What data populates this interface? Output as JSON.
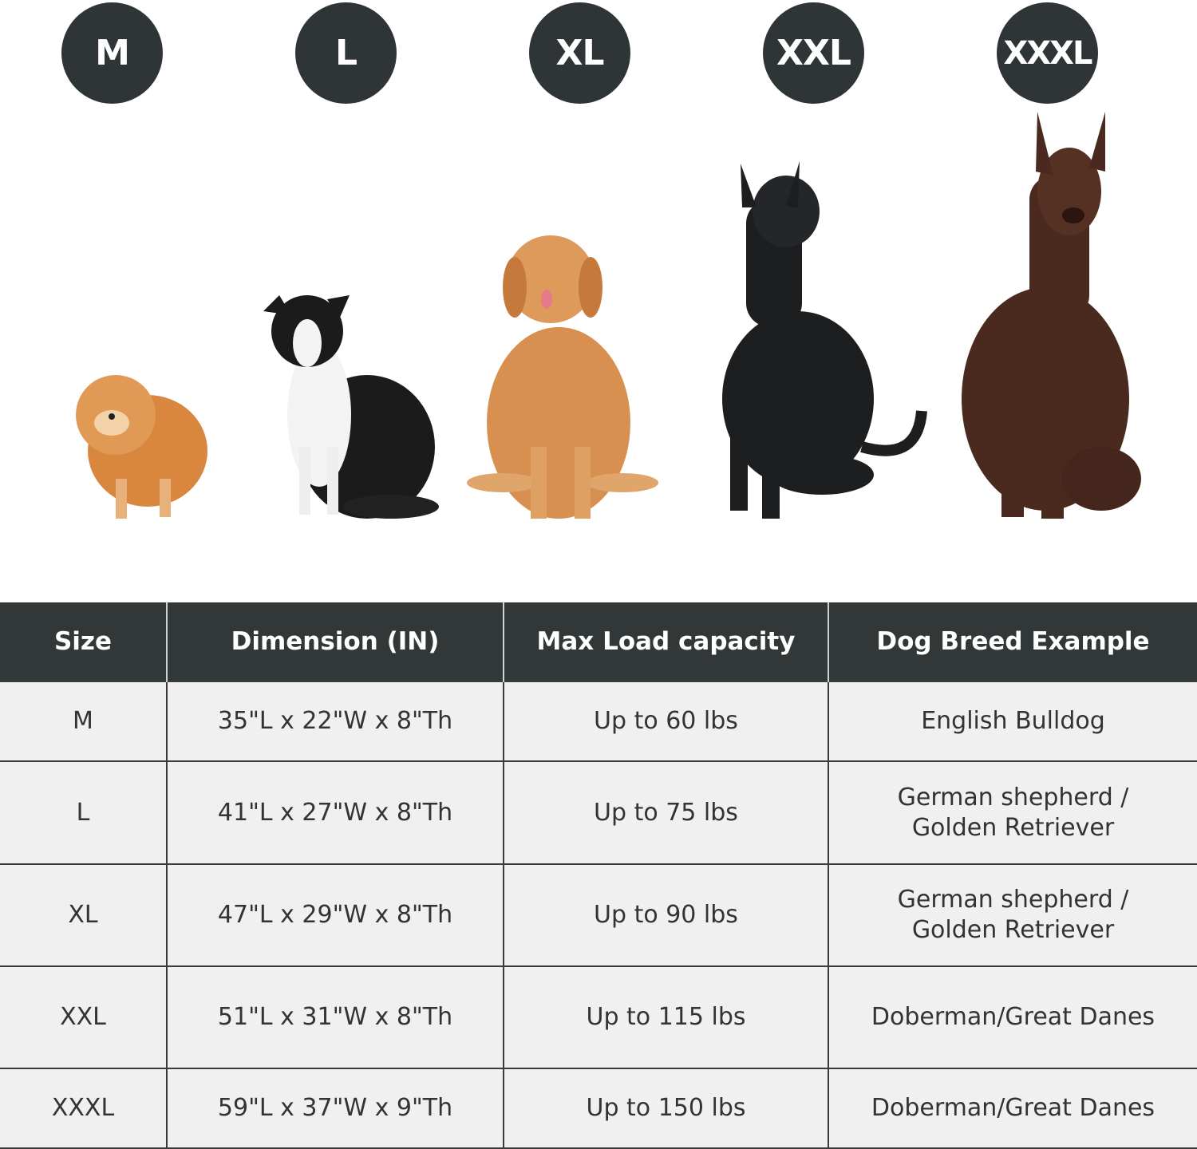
{
  "sizes": [
    "M",
    "L",
    "XL",
    "XXL",
    "XXXL"
  ],
  "colors": {
    "header_bg": "#323838",
    "badge_bg": "#2f3536",
    "cell_bg": "#f0f0f0"
  },
  "dog_images": [
    "pomeranian",
    "border-collie",
    "golden-retriever",
    "great-dane",
    "doberman"
  ],
  "table": {
    "headers": [
      "Size",
      "Dimension (IN)",
      "Max Load capacity",
      "Dog Breed Example"
    ],
    "rows": [
      [
        "M",
        "35\"L x 22\"W x 8\"Th",
        "Up to 60 lbs",
        "English Bulldog"
      ],
      [
        "L",
        "41\"L x 27\"W x 8\"Th",
        "Up to 75 lbs",
        "German shepherd / Golden Retriever"
      ],
      [
        "XL",
        "47\"L x 29\"W x 8\"Th",
        "Up to 90 lbs",
        "German shepherd / Golden Retriever"
      ],
      [
        "XXL",
        "51\"L x 31\"W x 8\"Th",
        "Up to 115 lbs",
        "Doberman/Great Danes"
      ],
      [
        "XXXL",
        "59\"L x 37\"W x 9\"Th",
        "Up to 150 lbs",
        "Doberman/Great Danes"
      ]
    ]
  }
}
